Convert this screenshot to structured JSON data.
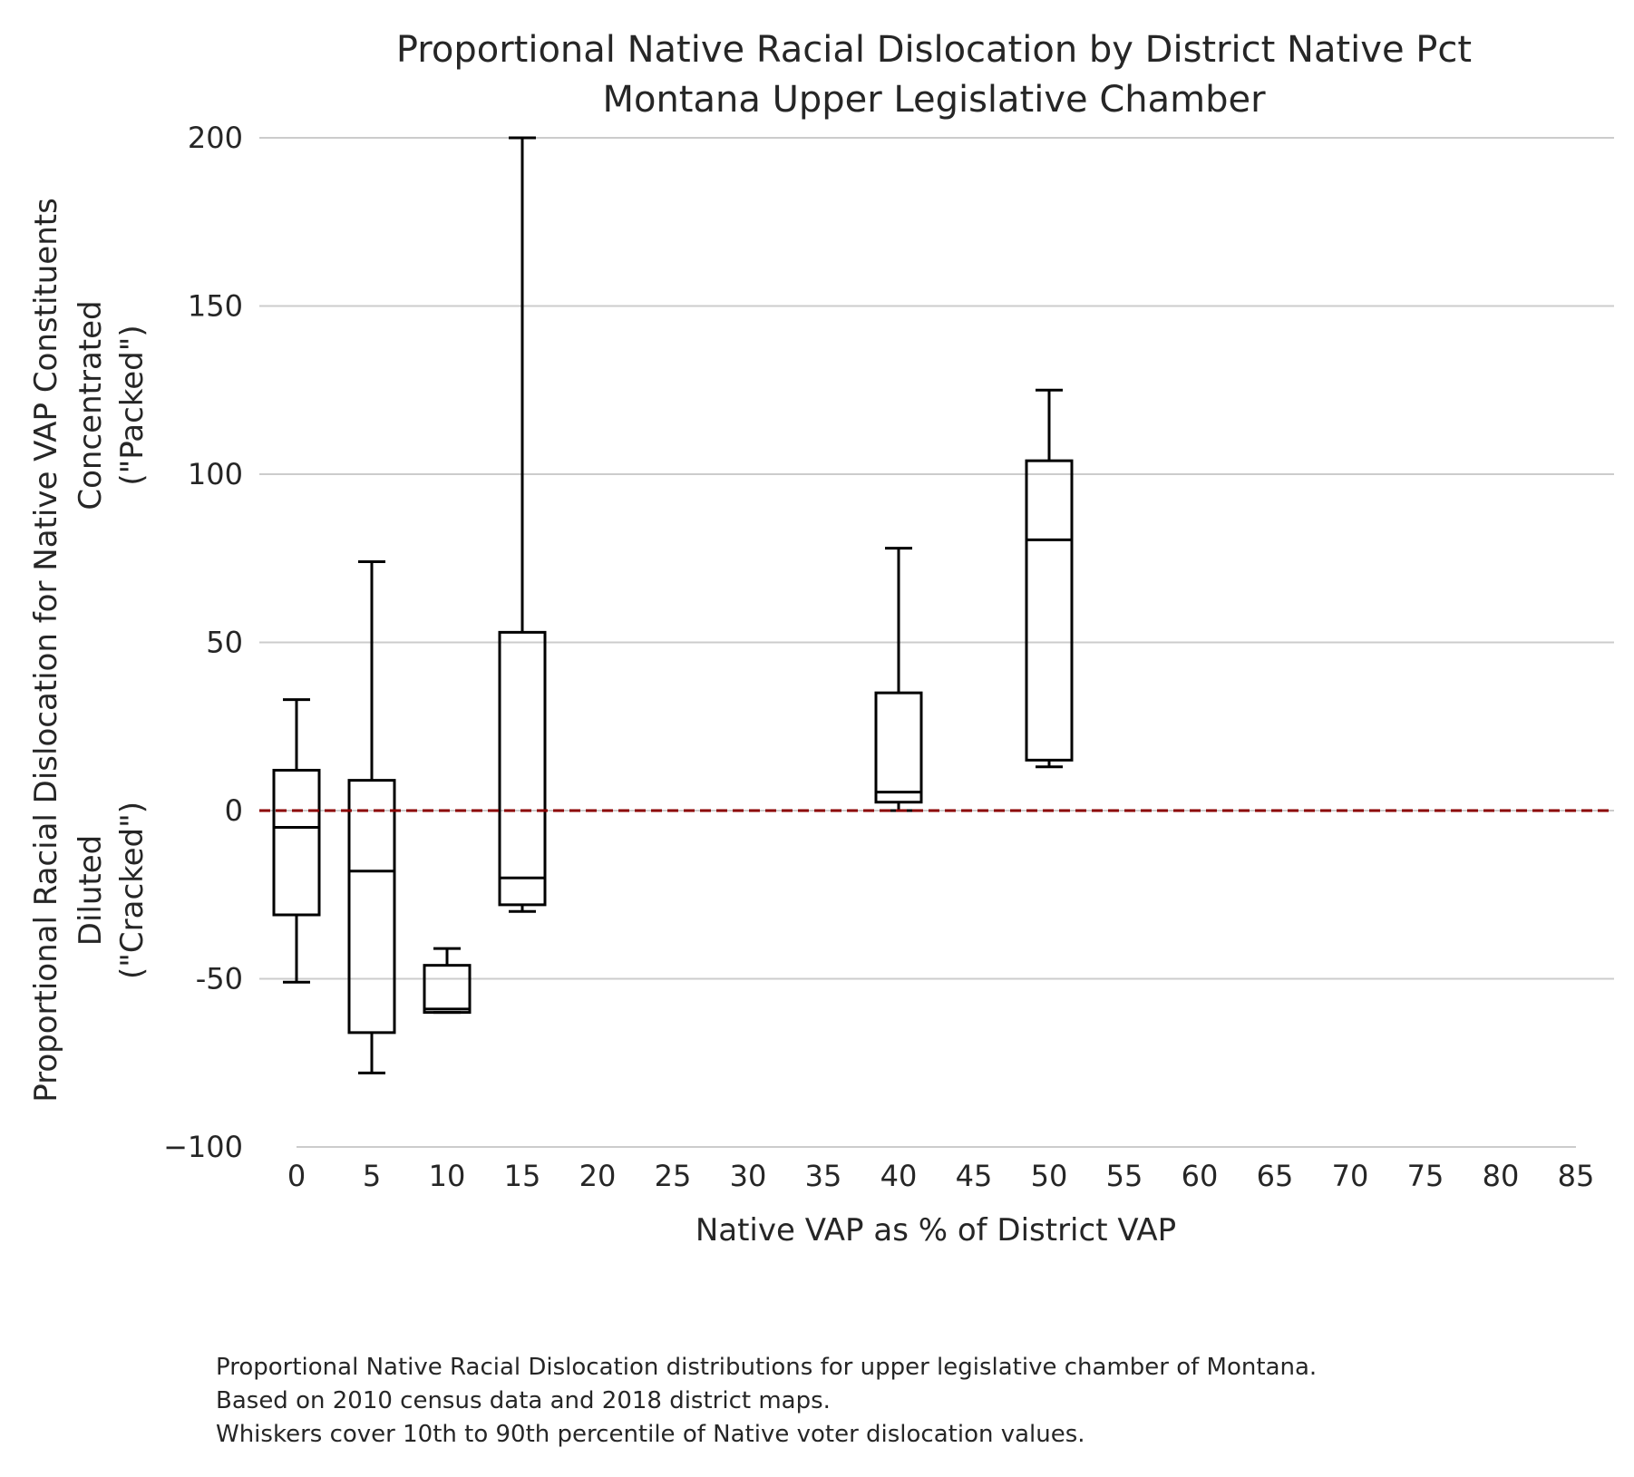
{
  "chart_data": {
    "type": "box",
    "title": [
      "Proportional Native Racial Dislocation by District Native Pct",
      "Montana Upper Legislative Chamber"
    ],
    "xlabel": "Native VAP as % of District VAP",
    "ylabel": [
      "Proportional Racial Dislocation for Native VAP Constituents",
      "Concentrated",
      "(\"Packed\")",
      "Diluted",
      "(\"Cracked\")"
    ],
    "x_ticks": [
      "0",
      "5",
      "10",
      "15",
      "20",
      "25",
      "30",
      "35",
      "40",
      "45",
      "50",
      "55",
      "60",
      "65",
      "70",
      "75",
      "80",
      "85"
    ],
    "y_ticks": [
      "200",
      "150",
      "100",
      "50",
      "0",
      "-50",
      "−100"
    ],
    "y_tick_values": [
      200,
      150,
      100,
      50,
      0,
      -50,
      -100
    ],
    "xlim": [
      -2.5,
      87.5
    ],
    "ylim": [
      -100,
      200
    ],
    "reference_line": {
      "y": 0,
      "color": "#8b0000",
      "style": "dashed"
    },
    "grid": "horizontal",
    "boxes": [
      {
        "x": 0,
        "whisker_low": -51,
        "q1": -31,
        "median": -5,
        "q3": 12,
        "whisker_high": 33
      },
      {
        "x": 5,
        "whisker_low": -78,
        "q1": -66,
        "median": -18,
        "q3": 9,
        "whisker_high": 74
      },
      {
        "x": 10,
        "whisker_low": -60,
        "q1": -60,
        "median": -59,
        "q3": -46,
        "whisker_high": -41
      },
      {
        "x": 15,
        "whisker_low": -30,
        "q1": -28,
        "median": -20,
        "q3": 53,
        "whisker_high": 200
      },
      {
        "x": 40,
        "whisker_low": 0,
        "q1": 2.5,
        "median": 5.5,
        "q3": 35,
        "whisker_high": 78
      },
      {
        "x": 50,
        "whisker_low": 13,
        "q1": 15,
        "median": 80.5,
        "q3": 104,
        "whisker_high": 125
      }
    ]
  },
  "caption": [
    "Proportional Native Racial Dislocation distributions for upper legislative chamber of Montana.",
    "Based on 2010 census data and 2018 district maps.",
    "Whiskers cover 10th to 90th percentile of Native voter dislocation values."
  ]
}
